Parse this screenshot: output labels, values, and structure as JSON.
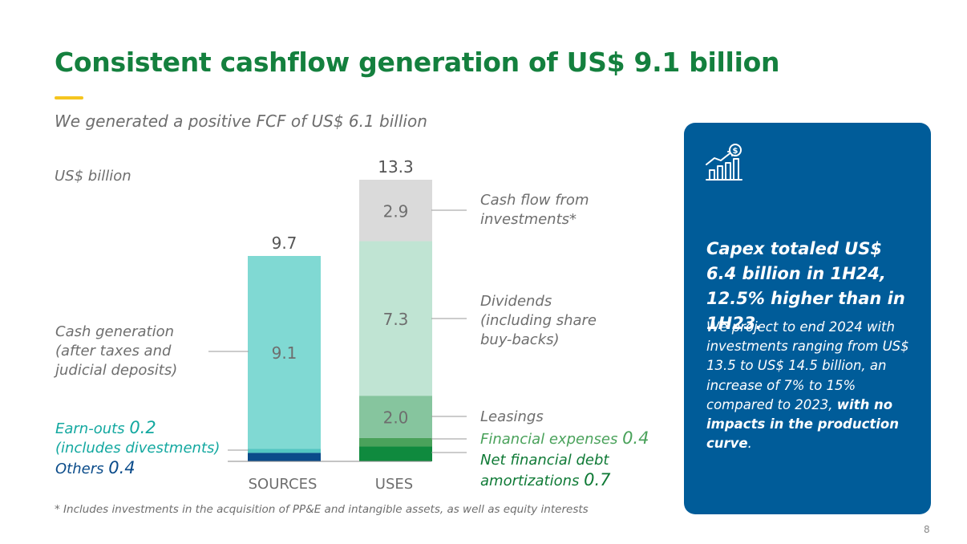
{
  "title": "Consistent cashflow generation of US$ 9.1 billion",
  "subtitle": "We generated a positive FCF of US$ 6.1 billion",
  "unit_label": "US$ billion",
  "labels": {
    "cash_generation": [
      "Cash generation",
      "(after taxes and",
      "judicial deposits)"
    ],
    "earn_outs_text": "Earn-outs",
    "earn_outs_value": "0.2",
    "earn_outs_note": "(includes divestments)",
    "others_text": "Others",
    "others_value": "0.4",
    "cash_flow_investments": [
      "Cash flow from",
      "investments*"
    ],
    "dividends": [
      "Dividends",
      "(including share",
      "buy-backs)"
    ],
    "leasings": "Leasings",
    "financial_expenses_text": "Financial expenses",
    "financial_expenses_value": "0.4",
    "net_financial_debt_line1": "Net financial debt",
    "net_financial_debt_text": "amortizations",
    "net_financial_debt_value": "0.7"
  },
  "footnote": "* Includes investments in the acquisition of PP&E and intangible assets, as well as equity interests",
  "page_number": "8",
  "panel": {
    "icon": "growth-chart-dollar-icon",
    "headline": "Capex totaled US$ 6.4 billion in 1H24, 12.5% higher than in 1H23.",
    "body_text": "We project to end 2024 with investments ranging from US$ 13.5 to US$ 14.5 billion, an increase of 7% to 15% compared to 2023,",
    "body_bold": "with no impacts in the production curve",
    "body_end": "."
  },
  "colors": {
    "title_green": "#14803e",
    "accent_yellow": "#f5c51f",
    "panel_blue": "#005c99",
    "cash_generation": "#80d9d3",
    "earn_outs": "#52c6c2",
    "others": "#0a4b8a",
    "cash_flow_investments": "#dadada",
    "dividends": "#c0e4d3",
    "leasings": "#86c59e",
    "financial_expenses": "#4aa25b",
    "net_financial_debt": "#0f8a3e"
  },
  "chart_data": {
    "type": "bar",
    "stacked": true,
    "categories": [
      "SOURCES",
      "USES"
    ],
    "totals": [
      "9.7",
      "13.3"
    ],
    "series": [
      {
        "name": "Others",
        "stack": "SOURCES",
        "value": 0.4,
        "label": "",
        "color_key": "others"
      },
      {
        "name": "Earn-outs (includes divestments)",
        "stack": "SOURCES",
        "value": 0.2,
        "label": "",
        "color_key": "earn_outs"
      },
      {
        "name": "Cash generation (after taxes and judicial deposits)",
        "stack": "SOURCES",
        "value": 9.1,
        "label": "9.1",
        "color_key": "cash_generation"
      },
      {
        "name": "Net financial debt amortizations",
        "stack": "USES",
        "value": 0.7,
        "label": "",
        "color_key": "net_financial_debt"
      },
      {
        "name": "Financial expenses",
        "stack": "USES",
        "value": 0.4,
        "label": "",
        "color_key": "financial_expenses"
      },
      {
        "name": "Leasings",
        "stack": "USES",
        "value": 2.0,
        "label": "2.0",
        "color_key": "leasings"
      },
      {
        "name": "Dividends (including share buy-backs)",
        "stack": "USES",
        "value": 7.3,
        "label": "7.3",
        "color_key": "dividends"
      },
      {
        "name": "Cash flow from investments*",
        "stack": "USES",
        "value": 2.9,
        "label": "2.9",
        "color_key": "cash_flow_investments"
      }
    ],
    "ylabel": "US$ billion",
    "ylim": [
      0,
      13.3
    ],
    "grid": false,
    "legend": "none"
  }
}
